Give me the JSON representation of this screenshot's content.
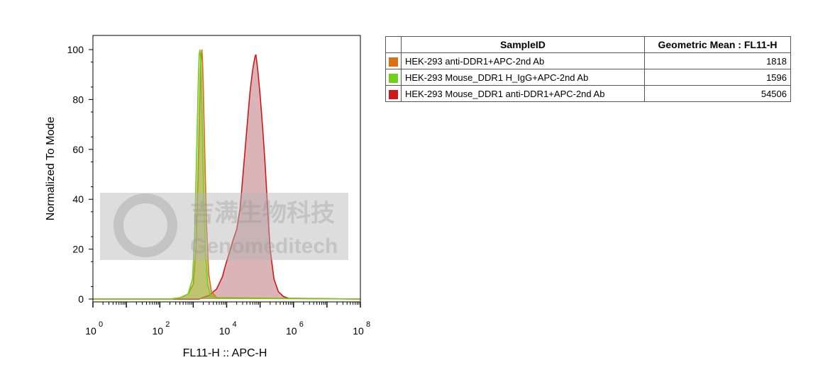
{
  "chart_data": {
    "type": "area",
    "xlabel": "FL11-H :: APC-H",
    "ylabel": "Normalized To Mode",
    "x_scale": "log",
    "xlim": [
      1,
      100000000
    ],
    "ylim": [
      0,
      100
    ],
    "x_ticks": [
      {
        "base": "10",
        "exp": "0",
        "value": 1
      },
      {
        "base": "10",
        "exp": "2",
        "value": 100
      },
      {
        "base": "10",
        "exp": "4",
        "value": 10000
      },
      {
        "base": "10",
        "exp": "6",
        "value": 1000000
      },
      {
        "base": "10",
        "exp": "8",
        "value": 100000000
      }
    ],
    "y_ticks": [
      "0",
      "20",
      "40",
      "60",
      "80",
      "100"
    ],
    "grid": false,
    "series": [
      {
        "name": "HEK-293 anti-DDR1+APC-2nd Ab",
        "color": "#d97014",
        "fill": "rgba(215,125,45,0.45)",
        "points": [
          [
            1,
            0
          ],
          [
            200,
            0
          ],
          [
            400,
            0.5
          ],
          [
            700,
            2
          ],
          [
            1000,
            6
          ],
          [
            1200,
            20
          ],
          [
            1400,
            50
          ],
          [
            1550,
            75
          ],
          [
            1650,
            92
          ],
          [
            1750,
            98
          ],
          [
            1818,
            100
          ],
          [
            1900,
            95
          ],
          [
            2000,
            85
          ],
          [
            2200,
            60
          ],
          [
            2500,
            30
          ],
          [
            2900,
            10
          ],
          [
            3500,
            3
          ],
          [
            5000,
            0.5
          ],
          [
            100000000,
            0
          ]
        ]
      },
      {
        "name": "HEK-293 Mouse_DDR1 H_IgG+APC-2nd Ab",
        "color": "#6ed11a",
        "fill": "rgba(120,200,40,0.40)",
        "points": [
          [
            1,
            0
          ],
          [
            200,
            0
          ],
          [
            400,
            0.5
          ],
          [
            700,
            2
          ],
          [
            950,
            8
          ],
          [
            1100,
            25
          ],
          [
            1250,
            55
          ],
          [
            1400,
            85
          ],
          [
            1500,
            98
          ],
          [
            1596,
            100
          ],
          [
            1680,
            96
          ],
          [
            1800,
            80
          ],
          [
            2000,
            50
          ],
          [
            2300,
            20
          ],
          [
            2700,
            6
          ],
          [
            3300,
            1.5
          ],
          [
            5000,
            0.3
          ],
          [
            100000000,
            0
          ]
        ]
      },
      {
        "name": "HEK-293 Mouse_DDR1 anti-DDR1+APC-2nd Ab",
        "color": "#d01818",
        "fill": "rgba(150,40,50,0.35)",
        "points": [
          [
            1,
            0
          ],
          [
            1500,
            0
          ],
          [
            3000,
            1.5
          ],
          [
            5000,
            4
          ],
          [
            7500,
            9
          ],
          [
            9000,
            13
          ],
          [
            11000,
            17
          ],
          [
            13000,
            20
          ],
          [
            15000,
            23
          ],
          [
            20000,
            28
          ],
          [
            25000,
            36
          ],
          [
            30000,
            48
          ],
          [
            40000,
            68
          ],
          [
            50000,
            83
          ],
          [
            60000,
            92
          ],
          [
            70000,
            97
          ],
          [
            75000,
            98
          ],
          [
            85000,
            92
          ],
          [
            100000,
            82
          ],
          [
            120000,
            68
          ],
          [
            140000,
            55
          ],
          [
            170000,
            35
          ],
          [
            200000,
            20
          ],
          [
            260000,
            8
          ],
          [
            350000,
            3
          ],
          [
            500000,
            1
          ],
          [
            700000,
            0.3
          ],
          [
            100000000,
            0
          ]
        ]
      }
    ]
  },
  "watermark": {
    "cn": "吉满生物科技",
    "en": "Genomeditech"
  },
  "legend": {
    "header_sample": "SampleID",
    "header_metric": "Geometric Mean : FL11-H",
    "rows": [
      {
        "color": "#d97014",
        "name": "HEK-293 anti-DDR1+APC-2nd Ab",
        "value": "1818"
      },
      {
        "color": "#6ed11a",
        "name": "HEK-293 Mouse_DDR1 H_IgG+APC-2nd Ab",
        "value": "1596"
      },
      {
        "color": "#d01818",
        "name": "HEK-293 Mouse_DDR1 anti-DDR1+APC-2nd Ab",
        "value": "54506"
      }
    ]
  }
}
